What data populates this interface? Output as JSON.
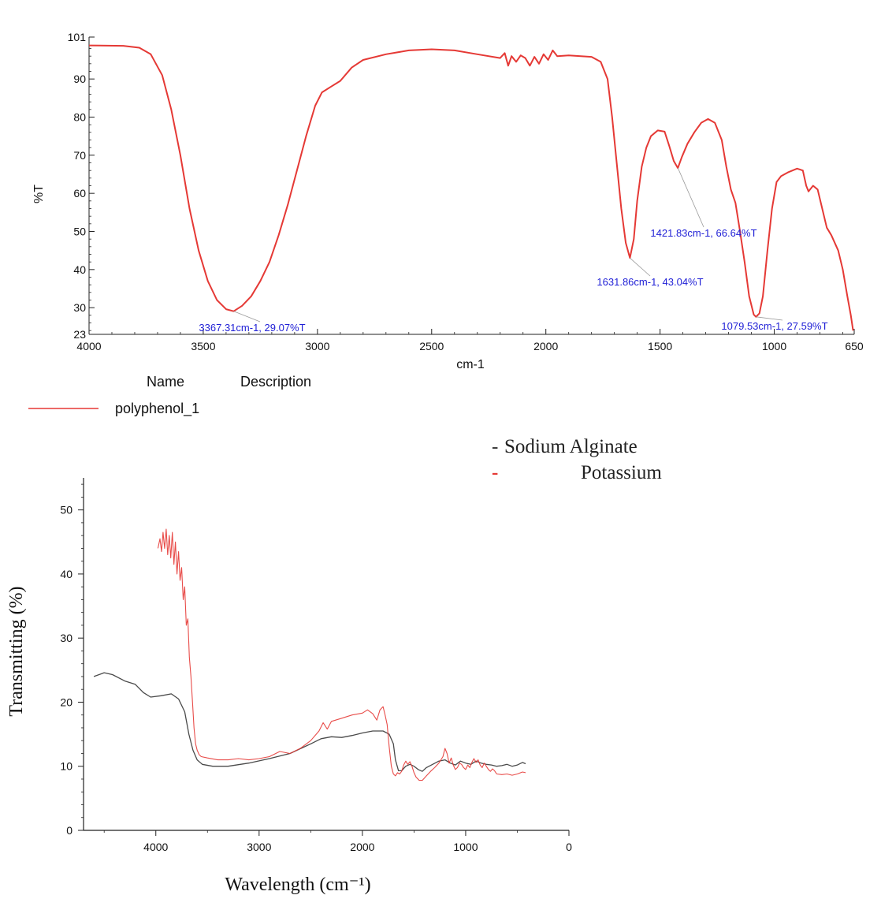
{
  "chart_data": [
    {
      "type": "line",
      "ylabel": "%T",
      "xlabel": "cm-1",
      "xlim": [
        4000,
        650
      ],
      "ylim": [
        23,
        101
      ],
      "x_reversed": true,
      "x_ticks": [
        "4000",
        "3500",
        "3000",
        "2500",
        "2000",
        "1500",
        "1000",
        "650"
      ],
      "y_ticks": [
        "101",
        "90",
        "80",
        "70",
        "60",
        "50",
        "40",
        "30",
        "23"
      ],
      "legend_headers": {
        "name": "Name",
        "description": "Description"
      },
      "legend_color": "#e53935",
      "series": [
        {
          "name": "polyphenol_1",
          "color": "#e53935",
          "points": [
            [
              4000,
              98.8
            ],
            [
              3850,
              98.7
            ],
            [
              3780,
              98.2
            ],
            [
              3730,
              96.5
            ],
            [
              3680,
              91
            ],
            [
              3640,
              82
            ],
            [
              3600,
              70
            ],
            [
              3560,
              56
            ],
            [
              3520,
              45
            ],
            [
              3480,
              37
            ],
            [
              3440,
              32
            ],
            [
              3400,
              29.6
            ],
            [
              3367,
              29.07
            ],
            [
              3330,
              30.5
            ],
            [
              3290,
              33
            ],
            [
              3250,
              37
            ],
            [
              3210,
              42
            ],
            [
              3170,
              49
            ],
            [
              3130,
              57
            ],
            [
              3090,
              66
            ],
            [
              3050,
              75
            ],
            [
              3010,
              83
            ],
            [
              2980,
              86.5
            ],
            [
              2940,
              88
            ],
            [
              2900,
              89.5
            ],
            [
              2850,
              93
            ],
            [
              2800,
              95
            ],
            [
              2700,
              96.5
            ],
            [
              2600,
              97.5
            ],
            [
              2500,
              97.8
            ],
            [
              2400,
              97.5
            ],
            [
              2300,
              96.5
            ],
            [
              2200,
              95.5
            ],
            [
              2180,
              96.8
            ],
            [
              2165,
              93.5
            ],
            [
              2150,
              96
            ],
            [
              2130,
              94.5
            ],
            [
              2110,
              96.2
            ],
            [
              2090,
              95.5
            ],
            [
              2070,
              93.5
            ],
            [
              2050,
              95.8
            ],
            [
              2030,
              94
            ],
            [
              2010,
              96.5
            ],
            [
              1990,
              95
            ],
            [
              1970,
              97.5
            ],
            [
              1950,
              96
            ],
            [
              1900,
              96.2
            ],
            [
              1800,
              95.8
            ],
            [
              1760,
              94.5
            ],
            [
              1730,
              90
            ],
            [
              1710,
              80
            ],
            [
              1690,
              68
            ],
            [
              1670,
              56
            ],
            [
              1650,
              47
            ],
            [
              1632,
              43.04
            ],
            [
              1615,
              48
            ],
            [
              1600,
              58
            ],
            [
              1580,
              67
            ],
            [
              1560,
              72
            ],
            [
              1540,
              75
            ],
            [
              1510,
              76.5
            ],
            [
              1480,
              76.2
            ],
            [
              1460,
              72.5
            ],
            [
              1440,
              68.5
            ],
            [
              1422,
              66.64
            ],
            [
              1405,
              69.5
            ],
            [
              1380,
              73
            ],
            [
              1350,
              76
            ],
            [
              1320,
              78.5
            ],
            [
              1290,
              79.5
            ],
            [
              1260,
              78.5
            ],
            [
              1230,
              74
            ],
            [
              1210,
              67
            ],
            [
              1190,
              61
            ],
            [
              1170,
              57.5
            ],
            [
              1150,
              50
            ],
            [
              1130,
              42
            ],
            [
              1110,
              33
            ],
            [
              1090,
              28.2
            ],
            [
              1080,
              27.59
            ],
            [
              1065,
              28.5
            ],
            [
              1050,
              33
            ],
            [
              1030,
              45
            ],
            [
              1010,
              56
            ],
            [
              990,
              63
            ],
            [
              970,
              64.5
            ],
            [
              940,
              65.5
            ],
            [
              900,
              66.5
            ],
            [
              875,
              66
            ],
            [
              860,
              62
            ],
            [
              850,
              60.5
            ],
            [
              830,
              62
            ],
            [
              810,
              61
            ],
            [
              790,
              56
            ],
            [
              770,
              51
            ],
            [
              750,
              49
            ],
            [
              720,
              45
            ],
            [
              700,
              40
            ],
            [
              680,
              33
            ],
            [
              665,
              28
            ],
            [
              655,
              24
            ]
          ]
        }
      ],
      "annotations": [
        {
          "text": "3367.31cm-1, 29.07%T",
          "x": 3367.31,
          "y": 29.07
        },
        {
          "text": "1631.86cm-1, 43.04%T",
          "x": 1631.86,
          "y": 43.04
        },
        {
          "text": "1421.83cm-1, 66.64%T",
          "x": 1421.83,
          "y": 66.64
        },
        {
          "text": "1079.53cm-1, 27.59%T",
          "x": 1079.53,
          "y": 27.59
        }
      ],
      "annotation_color": "#1f1fd6"
    },
    {
      "type": "line",
      "ylabel": "Transmitting (%)",
      "xlabel": "Wavelength (cm⁻¹)",
      "xlim": [
        4700,
        0
      ],
      "ylim": [
        0,
        55
      ],
      "x_reversed": true,
      "x_ticks": [
        "4000",
        "3000",
        "2000",
        "1000",
        "0"
      ],
      "y_ticks": [
        "0",
        "10",
        "20",
        "30",
        "40",
        "50"
      ],
      "legend": [
        {
          "marker": "-",
          "label": "Sodium Alginate"
        },
        {
          "marker": "-",
          "label": "Potassium"
        }
      ],
      "series": [
        {
          "name": "Sodium Alginate",
          "color": "#4a4a4a",
          "points": [
            [
              4600,
              24
            ],
            [
              4500,
              24.6
            ],
            [
              4420,
              24.3
            ],
            [
              4300,
              23.3
            ],
            [
              4200,
              22.8
            ],
            [
              4120,
              21.5
            ],
            [
              4050,
              20.8
            ],
            [
              3950,
              21
            ],
            [
              3850,
              21.3
            ],
            [
              3780,
              20.5
            ],
            [
              3720,
              18.5
            ],
            [
              3680,
              15
            ],
            [
              3640,
              12.5
            ],
            [
              3600,
              11
            ],
            [
              3550,
              10.3
            ],
            [
              3450,
              10
            ],
            [
              3300,
              10
            ],
            [
              3100,
              10.5
            ],
            [
              2900,
              11.2
            ],
            [
              2700,
              12
            ],
            [
              2500,
              13.5
            ],
            [
              2400,
              14.3
            ],
            [
              2300,
              14.6
            ],
            [
              2200,
              14.5
            ],
            [
              2100,
              14.8
            ],
            [
              2000,
              15.2
            ],
            [
              1900,
              15.5
            ],
            [
              1800,
              15.5
            ],
            [
              1740,
              15
            ],
            [
              1700,
              13.5
            ],
            [
              1680,
              11
            ],
            [
              1650,
              9.3
            ],
            [
              1620,
              9.3
            ],
            [
              1580,
              10
            ],
            [
              1540,
              10.3
            ],
            [
              1500,
              10
            ],
            [
              1460,
              9.5
            ],
            [
              1420,
              9.2
            ],
            [
              1380,
              9.8
            ],
            [
              1320,
              10.3
            ],
            [
              1260,
              10.8
            ],
            [
              1200,
              11
            ],
            [
              1150,
              10.5
            ],
            [
              1100,
              10.2
            ],
            [
              1050,
              10.8
            ],
            [
              1000,
              10.5
            ],
            [
              950,
              10.3
            ],
            [
              900,
              10.8
            ],
            [
              850,
              10.5
            ],
            [
              800,
              10.3
            ],
            [
              750,
              10.2
            ],
            [
              700,
              10
            ],
            [
              650,
              10.1
            ],
            [
              600,
              10.3
            ],
            [
              550,
              10
            ],
            [
              500,
              10.2
            ],
            [
              450,
              10.6
            ],
            [
              420,
              10.4
            ]
          ]
        },
        {
          "name": "Potassium",
          "color": "#e53935",
          "points": [
            [
              3980,
              44
            ],
            [
              3960,
              45.5
            ],
            [
              3945,
              43.5
            ],
            [
              3930,
              46.5
            ],
            [
              3915,
              44
            ],
            [
              3900,
              47
            ],
            [
              3885,
              43
            ],
            [
              3870,
              46
            ],
            [
              3855,
              42.5
            ],
            [
              3840,
              46.5
            ],
            [
              3825,
              41.5
            ],
            [
              3810,
              45
            ],
            [
              3795,
              40
            ],
            [
              3780,
              43.5
            ],
            [
              3765,
              39
            ],
            [
              3750,
              41
            ],
            [
              3735,
              36
            ],
            [
              3720,
              38
            ],
            [
              3705,
              32
            ],
            [
              3690,
              33
            ],
            [
              3675,
              27
            ],
            [
              3660,
              24
            ],
            [
              3645,
              20
            ],
            [
              3630,
              16
            ],
            [
              3615,
              13.5
            ],
            [
              3600,
              12.5
            ],
            [
              3580,
              11.8
            ],
            [
              3560,
              11.5
            ],
            [
              3500,
              11.3
            ],
            [
              3400,
              11
            ],
            [
              3300,
              11
            ],
            [
              3200,
              11.2
            ],
            [
              3100,
              11
            ],
            [
              3000,
              11.2
            ],
            [
              2900,
              11.5
            ],
            [
              2800,
              12.3
            ],
            [
              2700,
              12
            ],
            [
              2600,
              12.8
            ],
            [
              2500,
              14
            ],
            [
              2420,
              15.5
            ],
            [
              2380,
              16.8
            ],
            [
              2340,
              15.8
            ],
            [
              2300,
              17
            ],
            [
              2200,
              17.5
            ],
            [
              2100,
              18
            ],
            [
              2000,
              18.3
            ],
            [
              1950,
              18.8
            ],
            [
              1900,
              18.2
            ],
            [
              1860,
              17.2
            ],
            [
              1830,
              18.8
            ],
            [
              1800,
              19.3
            ],
            [
              1780,
              18
            ],
            [
              1760,
              16.5
            ],
            [
              1740,
              13
            ],
            [
              1720,
              10
            ],
            [
              1700,
              8.8
            ],
            [
              1680,
              8.5
            ],
            [
              1660,
              9
            ],
            [
              1640,
              8.8
            ],
            [
              1620,
              9.2
            ],
            [
              1600,
              10.2
            ],
            [
              1580,
              10.8
            ],
            [
              1560,
              10.3
            ],
            [
              1540,
              10.7
            ],
            [
              1520,
              10
            ],
            [
              1500,
              9
            ],
            [
              1480,
              8.3
            ],
            [
              1450,
              7.8
            ],
            [
              1420,
              7.8
            ],
            [
              1380,
              8.5
            ],
            [
              1340,
              9.2
            ],
            [
              1300,
              9.8
            ],
            [
              1260,
              10.5
            ],
            [
              1220,
              11.5
            ],
            [
              1200,
              12.8
            ],
            [
              1180,
              12
            ],
            [
              1160,
              10.5
            ],
            [
              1140,
              11.3
            ],
            [
              1120,
              10.2
            ],
            [
              1100,
              9.5
            ],
            [
              1080,
              9.8
            ],
            [
              1060,
              10.5
            ],
            [
              1040,
              10.3
            ],
            [
              1020,
              9.8
            ],
            [
              1000,
              9.5
            ],
            [
              980,
              10.2
            ],
            [
              960,
              9.8
            ],
            [
              940,
              10.6
            ],
            [
              920,
              11.2
            ],
            [
              900,
              10.6
            ],
            [
              880,
              11
            ],
            [
              860,
              10.2
            ],
            [
              840,
              9.8
            ],
            [
              820,
              10.5
            ],
            [
              800,
              10
            ],
            [
              780,
              9.5
            ],
            [
              760,
              9.2
            ],
            [
              740,
              9.6
            ],
            [
              720,
              9.3
            ],
            [
              700,
              8.8
            ],
            [
              650,
              8.7
            ],
            [
              600,
              8.8
            ],
            [
              550,
              8.6
            ],
            [
              500,
              8.8
            ],
            [
              450,
              9.1
            ],
            [
              420,
              9
            ]
          ]
        }
      ]
    }
  ]
}
